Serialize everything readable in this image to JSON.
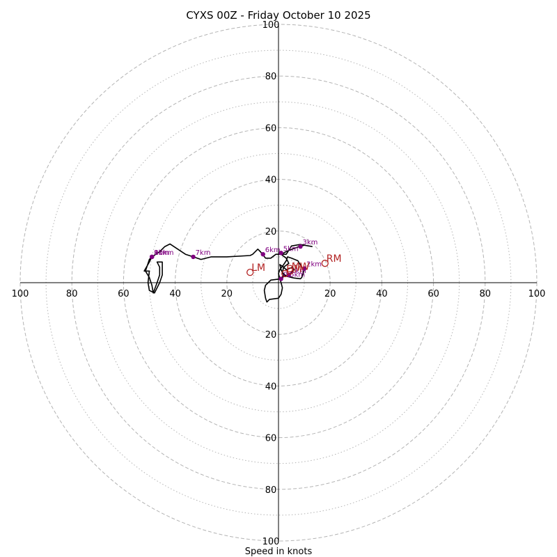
{
  "chart_data": {
    "type": "hodograph",
    "title": "CYXS 00Z - Friday October 10 2025",
    "xlabel": "Speed in knots",
    "ylabel": "",
    "range": [
      -100,
      100
    ],
    "ring_major": [
      20,
      40,
      60,
      80,
      100
    ],
    "ring_minor": [
      10,
      30,
      50,
      70,
      90
    ],
    "x_ticks": [
      "100",
      "80",
      "60",
      "40",
      "20",
      "20",
      "40",
      "60",
      "80",
      "100"
    ],
    "x_tick_values": [
      -100,
      -80,
      -60,
      -40,
      -20,
      20,
      40,
      60,
      80,
      100
    ],
    "y_ticks": [
      "100",
      "80",
      "60",
      "40",
      "20",
      "20",
      "40",
      "60",
      "80",
      "100"
    ],
    "y_tick_values": [
      100,
      80,
      60,
      40,
      20,
      -20,
      -40,
      -60,
      -80,
      -100
    ],
    "trace": [
      [
        1,
        1
      ],
      [
        2,
        2.5
      ],
      [
        4,
        3
      ],
      [
        5,
        4
      ],
      [
        6,
        5
      ],
      [
        5.5,
        6
      ],
      [
        3,
        5
      ],
      [
        2,
        6
      ],
      [
        0.5,
        7
      ],
      [
        1,
        5
      ],
      [
        2,
        3
      ],
      [
        1,
        1.5
      ],
      [
        -3,
        1
      ],
      [
        -4,
        0
      ],
      [
        -5,
        -1
      ],
      [
        -5.5,
        -3
      ],
      [
        -5,
        -6
      ],
      [
        -4.5,
        -7.5
      ],
      [
        -3.5,
        -6.5
      ],
      [
        0,
        -6
      ],
      [
        1,
        -4.5
      ],
      [
        1.5,
        -2
      ],
      [
        1,
        0
      ],
      [
        0.5,
        1.5
      ],
      [
        0,
        3.5
      ],
      [
        0.5,
        5
      ],
      [
        2,
        7
      ],
      [
        3,
        8.5
      ],
      [
        3.5,
        10
      ],
      [
        5,
        9.5
      ],
      [
        7.5,
        8.5
      ],
      [
        9,
        6
      ],
      [
        10,
        5
      ],
      [
        9,
        2
      ],
      [
        8.5,
        1.5
      ],
      [
        6,
        1.8
      ],
      [
        3,
        2.5
      ],
      [
        1.5,
        4
      ],
      [
        2,
        6
      ],
      [
        4,
        7.5
      ],
      [
        3,
        9.5
      ],
      [
        1,
        11
      ],
      [
        4,
        12.5
      ],
      [
        8,
        14
      ],
      [
        10,
        14.5
      ],
      [
        13,
        14
      ],
      [
        8.5,
        14.8
      ],
      [
        5,
        14.2
      ],
      [
        4,
        12.5
      ],
      [
        3,
        11
      ],
      [
        1,
        11
      ],
      [
        -1,
        11
      ],
      [
        -3,
        9.5
      ],
      [
        -5,
        9.5
      ],
      [
        -7,
        12
      ],
      [
        -8,
        13
      ],
      [
        -10,
        11
      ],
      [
        -11,
        10.5
      ],
      [
        -20,
        10
      ],
      [
        -26,
        10
      ],
      [
        -30,
        9
      ],
      [
        -33,
        10
      ],
      [
        -36,
        11
      ],
      [
        -39,
        13
      ],
      [
        -42,
        15
      ],
      [
        -44,
        14
      ],
      [
        -46,
        12
      ],
      [
        -49,
        10
      ],
      [
        -50,
        9
      ],
      [
        -51,
        6
      ],
      [
        -51.5,
        4.5
      ],
      [
        -50,
        2
      ],
      [
        -49,
        -1
      ],
      [
        -48.5,
        -4
      ],
      [
        -47,
        0
      ],
      [
        -46,
        3
      ],
      [
        -46,
        6
      ],
      [
        -47,
        8
      ],
      [
        -45,
        8
      ],
      [
        -45,
        3
      ],
      [
        -46,
        0
      ],
      [
        -48,
        -4
      ],
      [
        -50,
        -3
      ],
      [
        -50.5,
        0
      ],
      [
        -50,
        4.5
      ],
      [
        -52,
        4.5
      ],
      [
        -50,
        8
      ],
      [
        -49,
        10
      ]
    ],
    "km_markers": [
      {
        "label": "1km",
        "u": 4,
        "v": 3
      },
      {
        "label": "2km",
        "u": 10,
        "v": 5.5
      },
      {
        "label": "3km",
        "u": 8.5,
        "v": 14
      },
      {
        "label": "5km",
        "u": 1,
        "v": 11.5
      },
      {
        "label": "6km",
        "u": -6,
        "v": 11
      },
      {
        "label": "7km",
        "u": -33,
        "v": 10
      },
      {
        "label": "8km",
        "u": -49,
        "v": 10
      },
      {
        "label": "9km",
        "u": -49,
        "v": 10
      },
      {
        "label": "10km",
        "u": -49,
        "v": 10
      },
      {
        "label": "0.5km",
        "u": 1,
        "v": 1.5
      }
    ],
    "storm_motion": [
      {
        "label": "RM",
        "u": 18,
        "v": 7.5
      },
      {
        "label": "LM",
        "u": -11,
        "v": 4
      },
      {
        "label": "MW",
        "u": 4.5,
        "v": 4.5
      },
      {
        "label": "DM",
        "u": 2.5,
        "v": 3.5
      }
    ],
    "colors": {
      "trace": "#000000",
      "km_marker": "#800080",
      "storm_marker": "#b22222",
      "ring": "#b3b3b3",
      "axis": "#000000"
    }
  }
}
